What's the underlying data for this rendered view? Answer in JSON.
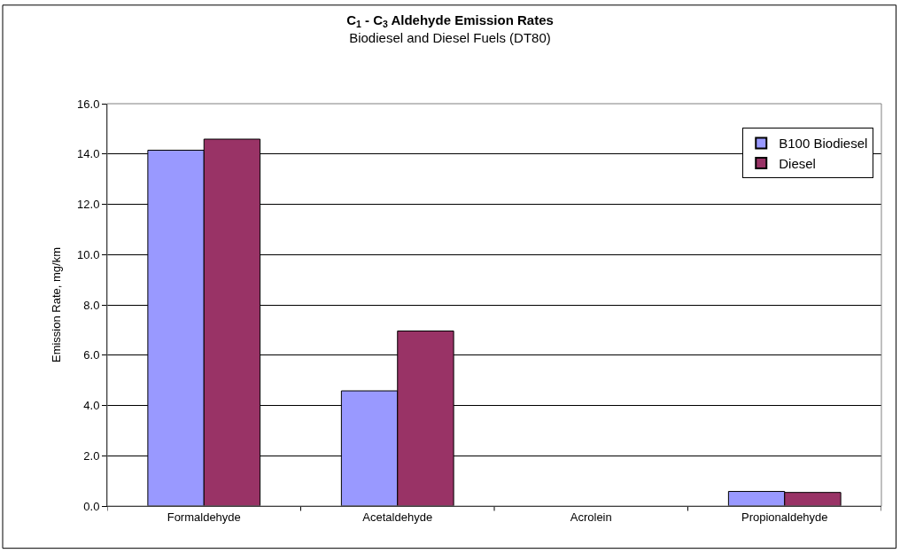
{
  "chart_data": {
    "type": "bar",
    "title": "C$_{1}$ - C$_{3}$ Aldehyde Emission Rates",
    "subtitle": "Biodiesel and Diesel Fuels (DT80)",
    "ylabel": "Emission Rate, mg/km",
    "categories": [
      "Formaldehyde",
      "Acetaldehyde",
      "Acrolein",
      "Propionaldehyde"
    ],
    "series": [
      {
        "name": "B100 Biodiesel",
        "color": "#9999ff",
        "values": [
          14.15,
          4.58,
          null,
          0.58
        ]
      },
      {
        "name": "Diesel",
        "color": "#993366",
        "values": [
          14.59,
          6.96,
          null,
          0.54
        ]
      }
    ],
    "ylim": [
      0,
      16
    ],
    "yticks": [
      {
        "value": 0,
        "label": "0.0"
      },
      {
        "value": 2,
        "label": "2.0"
      },
      {
        "value": 4,
        "label": "4.0"
      },
      {
        "value": 6,
        "label": "6.0"
      },
      {
        "value": 8,
        "label": "8.0"
      },
      {
        "value": 10,
        "label": "10.0"
      },
      {
        "value": 12,
        "label": "12.0"
      },
      {
        "value": 14,
        "label": "14.0"
      },
      {
        "value": 16,
        "label": "16.0"
      }
    ],
    "grid": "y",
    "legend": "top right"
  }
}
